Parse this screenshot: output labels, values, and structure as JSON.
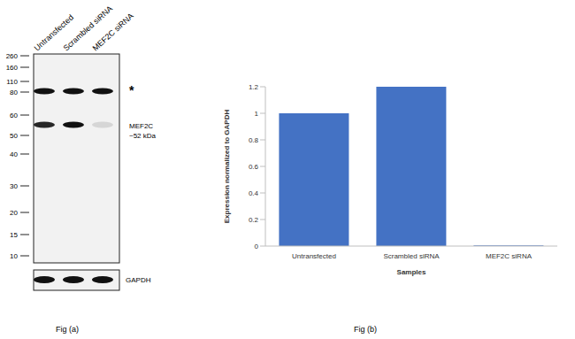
{
  "blot": {
    "lanes": [
      "Untransfected",
      "Scrambled siRNA",
      "MEF2C siRNA"
    ],
    "ladder_kda": [
      260,
      160,
      110,
      80,
      60,
      50,
      40,
      30,
      20,
      15,
      10
    ],
    "bands": [
      {
        "label": [
          "*"
        ],
        "kda": 82,
        "intensity": [
          1,
          1,
          1
        ]
      },
      {
        "label": [
          "MEF2C",
          "~52 kDa"
        ],
        "kda": 55,
        "intensity": [
          0.9,
          1,
          0.12
        ]
      }
    ],
    "loading_control": {
      "label": "GAPDH",
      "intensity": [
        1,
        1,
        1
      ]
    }
  },
  "chart_data": {
    "type": "bar",
    "categories": [
      "Untransfected",
      "Scrambled siRNA",
      "MEF2C siRNA"
    ],
    "values": [
      1,
      1.2,
      0.005
    ],
    "color": "#4472c4",
    "ylim": [
      0,
      1.2
    ],
    "yticks": [
      0,
      0.2,
      0.4,
      0.6,
      0.8,
      1,
      1.2
    ],
    "xlabel": "Samples",
    "ylabel": "Expression normalized to GAPDH",
    "grid": false
  },
  "captions": [
    "Fig (a)",
    "Fig (b)"
  ]
}
